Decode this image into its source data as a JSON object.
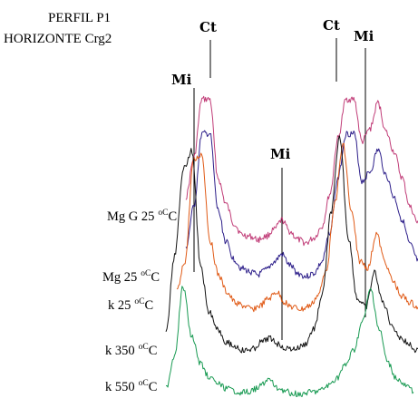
{
  "chart_data": {
    "type": "line",
    "title": "PERFIL P1",
    "subtitle": "HORIZONTE Crg2",
    "xlabel": "",
    "ylabel": "",
    "peak_labels": [
      "Mi",
      "Ct",
      "Mi",
      "Ct",
      "Mi"
    ],
    "series": [
      {
        "name": "Mg G 25",
        "unit": "oC",
        "color": "#c13d78",
        "values": [
          0.28,
          0.52,
          0.88,
          0.88,
          0.4,
          0.24,
          0.12,
          0.05,
          0.04,
          0.02,
          0.04,
          0.08,
          0.14,
          0.07,
          0.02,
          0.0,
          0.03,
          0.1,
          0.3,
          0.64,
          0.88,
          0.88,
          0.62,
          0.7,
          0.86,
          0.68,
          0.56,
          0.4,
          0.22,
          0.12
        ]
      },
      {
        "name": "Mg 25",
        "unit": "oC",
        "color": "#2d1f8a",
        "values": [
          0.18,
          0.44,
          0.9,
          0.9,
          0.42,
          0.22,
          0.11,
          0.05,
          0.03,
          0.01,
          0.04,
          0.09,
          0.14,
          0.07,
          0.02,
          0.0,
          0.02,
          0.09,
          0.28,
          0.62,
          0.9,
          0.9,
          0.6,
          0.66,
          0.8,
          0.64,
          0.5,
          0.36,
          0.2,
          0.1
        ]
      },
      {
        "name": "k 25",
        "unit": "oC",
        "color": "#e05a16",
        "values": [
          0.12,
          0.3,
          0.88,
          0.92,
          0.42,
          0.22,
          0.12,
          0.06,
          0.04,
          0.02,
          0.04,
          0.08,
          0.12,
          0.06,
          0.03,
          0.02,
          0.04,
          0.1,
          0.26,
          0.64,
          0.98,
          0.58,
          0.3,
          0.26,
          0.46,
          0.3,
          0.18,
          0.1,
          0.06,
          0.03
        ]
      },
      {
        "name": "k 350",
        "unit": "oC",
        "color": "#111111",
        "values": [
          0.1,
          0.46,
          0.86,
          0.94,
          0.4,
          0.2,
          0.12,
          0.06,
          0.04,
          0.02,
          0.03,
          0.06,
          0.08,
          0.05,
          0.03,
          0.03,
          0.05,
          0.12,
          0.28,
          0.66,
          1.0,
          0.54,
          0.26,
          0.22,
          0.38,
          0.24,
          0.14,
          0.08,
          0.05,
          0.02
        ]
      },
      {
        "name": "k 550",
        "unit": "oC",
        "color": "#189a52",
        "values": [
          0.06,
          0.32,
          0.86,
          0.48,
          0.26,
          0.16,
          0.1,
          0.06,
          0.04,
          0.03,
          0.04,
          0.08,
          0.13,
          0.07,
          0.04,
          0.02,
          0.02,
          0.03,
          0.04,
          0.08,
          0.14,
          0.24,
          0.36,
          0.58,
          0.84,
          0.52,
          0.26,
          0.14,
          0.08,
          0.04
        ]
      }
    ]
  }
}
